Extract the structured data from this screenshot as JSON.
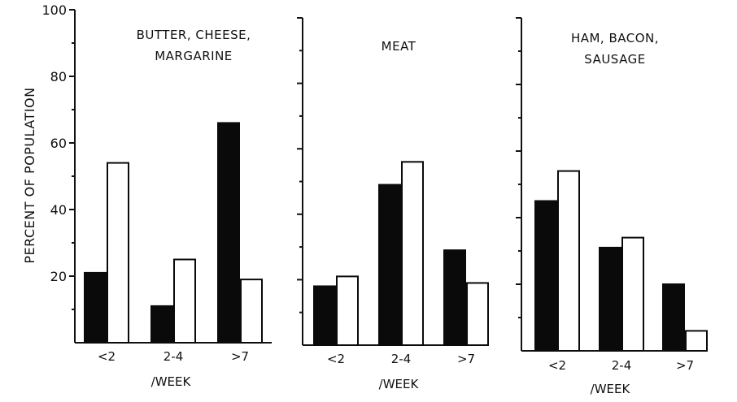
{
  "ylabel": "PERCENT OF POPULATION",
  "y_ticks": [
    "100",
    "80",
    "60",
    "40",
    "20"
  ],
  "chart_data": [
    {
      "type": "bar",
      "title_lines": [
        "BUTTER, CHEESE,",
        "MARGARINE"
      ],
      "categories": [
        "<2",
        "2-4",
        ">7"
      ],
      "xlabel": "/WEEK",
      "ylim": [
        0,
        100
      ],
      "series": [
        {
          "fill": "solid",
          "values": [
            21,
            11,
            66
          ]
        },
        {
          "fill": "open",
          "values": [
            54,
            25,
            19
          ]
        }
      ]
    },
    {
      "type": "bar",
      "title_lines": [
        "MEAT"
      ],
      "categories": [
        "<2",
        "2-4",
        ">7"
      ],
      "xlabel": "/WEEK",
      "ylim": [
        0,
        100
      ],
      "series": [
        {
          "fill": "solid",
          "values": [
            18,
            49,
            29
          ]
        },
        {
          "fill": "open",
          "values": [
            21,
            56,
            19
          ]
        }
      ]
    },
    {
      "type": "bar",
      "title_lines": [
        "HAM, BACON,",
        "SAUSAGE"
      ],
      "categories": [
        "<2",
        "2-4",
        ">7"
      ],
      "xlabel": "/WEEK",
      "ylim": [
        0,
        100
      ],
      "series": [
        {
          "fill": "solid",
          "values": [
            45,
            31,
            20
          ]
        },
        {
          "fill": "open",
          "values": [
            54,
            34,
            6
          ]
        }
      ]
    }
  ]
}
